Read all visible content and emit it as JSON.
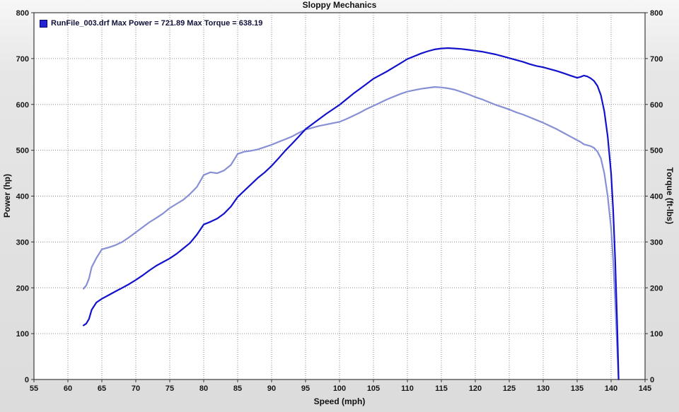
{
  "chart_data": {
    "type": "line",
    "title": "Sloppy Mechanics",
    "xlabel": "Speed (mph)",
    "ylabel_left": "Power (hp)",
    "ylabel_right": "Torque (ft-lbs)",
    "xlim": [
      55,
      145
    ],
    "ylim": [
      0,
      800
    ],
    "x_ticks": [
      55,
      60,
      65,
      70,
      75,
      80,
      85,
      90,
      95,
      100,
      105,
      110,
      115,
      120,
      125,
      130,
      135,
      140,
      145
    ],
    "y_ticks": [
      0,
      100,
      200,
      300,
      400,
      500,
      600,
      700,
      800
    ],
    "grid": "dotted",
    "grid_color": "#8c8c8c",
    "plot_background": "#ffffff",
    "legend": {
      "position": "top-left",
      "label": "RunFile_003.drf Max Power = 721.89 Max Torque = 638.19",
      "file": "RunFile_003.drf",
      "max_power": 721.89,
      "max_torque": 638.19,
      "swatch_color": "#2424d6"
    },
    "series": [
      {
        "name": "Power",
        "color": "#1212cc",
        "x": [
          62.3,
          62.7,
          63.1,
          63.5,
          64.2,
          65,
          66,
          67,
          68,
          69,
          70,
          71,
          72,
          73,
          74,
          75,
          76,
          77,
          78,
          79,
          80,
          81,
          82,
          83,
          84,
          85,
          86,
          87,
          88,
          89,
          90,
          91,
          92,
          93,
          94,
          95,
          96,
          97,
          98,
          99,
          100,
          101,
          102,
          103,
          104,
          105,
          106,
          107,
          108,
          109,
          110,
          111,
          112,
          113,
          114,
          115,
          116,
          117,
          118,
          119,
          120,
          121,
          122,
          123,
          124,
          125,
          126,
          127,
          128,
          129,
          130,
          131,
          132,
          133,
          134,
          135,
          135.5,
          136,
          136.5,
          137,
          137.5,
          138,
          138.5,
          139,
          139.5,
          140,
          140.3,
          140.6,
          140.9,
          141.1
        ],
        "values": [
          118,
          122,
          132,
          152,
          168,
          176,
          184,
          192,
          200,
          208,
          217,
          227,
          238,
          248,
          256,
          264,
          274,
          286,
          298,
          316,
          338,
          344,
          351,
          362,
          377,
          398,
          412,
          426,
          440,
          452,
          466,
          482,
          499,
          514,
          530,
          546,
          557,
          568,
          579,
          589,
          599,
          611,
          623,
          634,
          645,
          656,
          664,
          672,
          681,
          690,
          699,
          705,
          711,
          716,
          720,
          722,
          723,
          722,
          721,
          719,
          717,
          715,
          712,
          709,
          705,
          701,
          697,
          693,
          688,
          684,
          681,
          677,
          673,
          668,
          663,
          658,
          660,
          663,
          661,
          657,
          651,
          640,
          620,
          585,
          530,
          450,
          370,
          260,
          120,
          0
        ]
      },
      {
        "name": "Torque",
        "color": "#8790d4",
        "x": [
          62.3,
          62.7,
          63.1,
          63.5,
          64.2,
          65,
          66,
          67,
          68,
          69,
          70,
          71,
          72,
          73,
          74,
          75,
          76,
          77,
          78,
          79,
          80,
          81,
          82,
          83,
          84,
          85,
          86,
          87,
          88,
          89,
          90,
          91,
          92,
          93,
          94,
          95,
          96,
          97,
          98,
          99,
          100,
          101,
          102,
          103,
          104,
          105,
          106,
          107,
          108,
          109,
          110,
          111,
          112,
          113,
          114,
          115,
          116,
          117,
          118,
          119,
          120,
          121,
          122,
          123,
          124,
          125,
          126,
          127,
          128,
          129,
          130,
          131,
          132,
          133,
          134,
          135,
          135.5,
          136,
          136.5,
          137,
          137.5,
          138,
          138.5,
          139,
          139.5,
          140,
          140.3,
          140.6,
          140.9,
          141.1
        ],
        "values": [
          198,
          205,
          220,
          245,
          265,
          284,
          288,
          293,
          300,
          310,
          321,
          332,
          343,
          352,
          362,
          374,
          383,
          392,
          405,
          420,
          446,
          452,
          450,
          456,
          468,
          492,
          497,
          499,
          502,
          507,
          512,
          518,
          524,
          530,
          538,
          545,
          549,
          553,
          556,
          559,
          562,
          568,
          575,
          582,
          590,
          597,
          604,
          611,
          617,
          623,
          628,
          631,
          634,
          636,
          638,
          637,
          635,
          632,
          627,
          622,
          616,
          611,
          605,
          599,
          594,
          589,
          583,
          578,
          572,
          566,
          560,
          553,
          546,
          538,
          530,
          522,
          518,
          513,
          511,
          509,
          505,
          497,
          482,
          450,
          400,
          330,
          260,
          170,
          70,
          0
        ]
      }
    ]
  }
}
